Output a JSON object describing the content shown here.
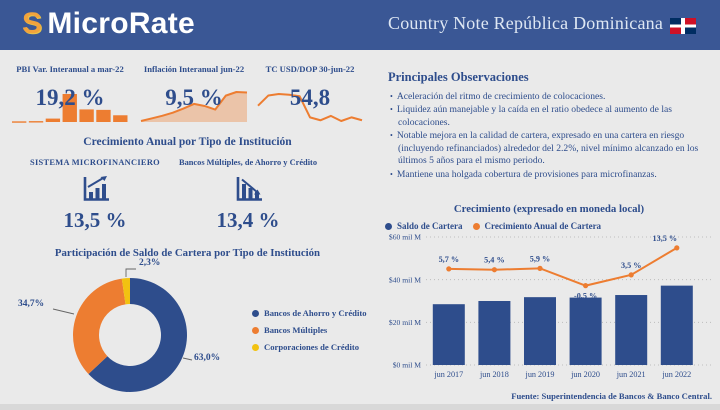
{
  "header": {
    "logo_letter": "S",
    "brand": "MicroRate",
    "title": "Country Note República Dominicana",
    "flag": "dominican-republic-flag"
  },
  "kpis": [
    {
      "label": "PBI Var. Interanual a mar-22",
      "value": "19,2 %",
      "spark": "bars",
      "spark_values": [
        0.6,
        0.8,
        3.1,
        25.4,
        11.4,
        11.0,
        6.1
      ],
      "color": "#ED7D31"
    },
    {
      "label": "Inflación Interanual jun-22",
      "value": "9,5 %",
      "spark": "area",
      "spark_values": [
        4.0,
        4.5,
        5.0,
        5.6,
        6.4,
        7.3,
        6.9,
        6.2,
        8.9,
        9.6,
        9.5
      ],
      "color": "#ED7D31",
      "fill": "rgba(237,125,49,0.35)"
    },
    {
      "label": "TC USD/DOP 30-jun-22",
      "value": "54,8",
      "spark": "line",
      "spark_values": [
        56.8,
        58.2,
        58.4,
        58.3,
        58.1,
        55.2,
        54.8,
        55.4,
        54.7,
        55.2,
        54.8
      ],
      "color": "#ED7D31"
    }
  ],
  "growth": {
    "title": "Crecimiento Anual por Tipo de Institución",
    "items": [
      {
        "label": "SISTEMA MICROFINANCIERO",
        "value": "13,5 %",
        "icon": "bar-chart-up-icon"
      },
      {
        "label": "Bancos Múltiples, de Ahorro y Crédito",
        "value": "13,4 %",
        "icon": "bar-chart-down-icon"
      }
    ]
  },
  "observations": {
    "title": "Principales Observaciones",
    "bullets": [
      "Aceleración del ritmo de crecimiento de colocaciones.",
      "Liquidez aún manejable y la caída en el ratio obedece al aumento de las colocaciones.",
      "Notable mejora en la calidad de cartera, expresado en una cartera en riesgo (incluyendo refinanciados) alrededor del 2.2%, nivel mínimo alcanzado en los últimos 5 años para el mismo periodo.",
      "Mantiene una holgada cobertura de provisiones para microfinanzas."
    ]
  },
  "chart_data": [
    {
      "type": "pie",
      "donut": true,
      "title": "Participación de Saldo de Cartera por Tipo de Institución",
      "slices": [
        {
          "label": "Bancos de Ahorro y Crédito",
          "value": 63.0,
          "display": "63,0%",
          "color": "#2E4D8C"
        },
        {
          "label": "Bancos Múltiples",
          "value": 34.7,
          "display": "34,7%",
          "color": "#ED7D31"
        },
        {
          "label": "Corporaciones de Crédito",
          "value": 2.3,
          "display": "2,3%",
          "color": "#F2C211"
        }
      ],
      "legend_position": "right"
    },
    {
      "type": "bar",
      "title": "Crecimiento (expresado en moneda local)",
      "categories": [
        "jun 2017",
        "jun 2018",
        "jun 2019",
        "jun 2020",
        "jun 2021",
        "jun 2022"
      ],
      "series": [
        {
          "name": "Saldo de Cartera",
          "kind": "bar",
          "color": "#2E4D8C",
          "values": [
            28.5,
            30.0,
            31.8,
            31.6,
            32.8,
            37.2
          ],
          "unit": "mil M"
        },
        {
          "name": "Crecimiento Anual de Cartera",
          "kind": "line",
          "color": "#ED7D31",
          "values": [
            5.7,
            5.4,
            5.9,
            -0.5,
            3.5,
            13.5
          ],
          "labels": [
            "5,7 %",
            "5,4 %",
            "5,9 %",
            "-0,5 %",
            "3,5 %",
            "13,5 %"
          ]
        }
      ],
      "y_ticks": [
        {
          "value": 0,
          "label": "$0 mil M"
        },
        {
          "value": 20,
          "label": "$20 mil M"
        },
        {
          "value": 40,
          "label": "$40 mil M"
        },
        {
          "value": 60,
          "label": "$60 mil M"
        }
      ],
      "ylim": [
        0,
        60
      ],
      "grid": "dotted-horizontal",
      "legend_position": "top-left"
    }
  ],
  "footer": {
    "source": "Fuente: Superintendencia de Bancos & Banco Central."
  },
  "colors": {
    "header_blue": "#3A5795",
    "dark_blue": "#2E4D8C",
    "orange": "#ED7D31",
    "yellow": "#F2C211",
    "background": "#EAEAEA",
    "flag_blue": "#002D62",
    "flag_red": "#CE1126"
  }
}
